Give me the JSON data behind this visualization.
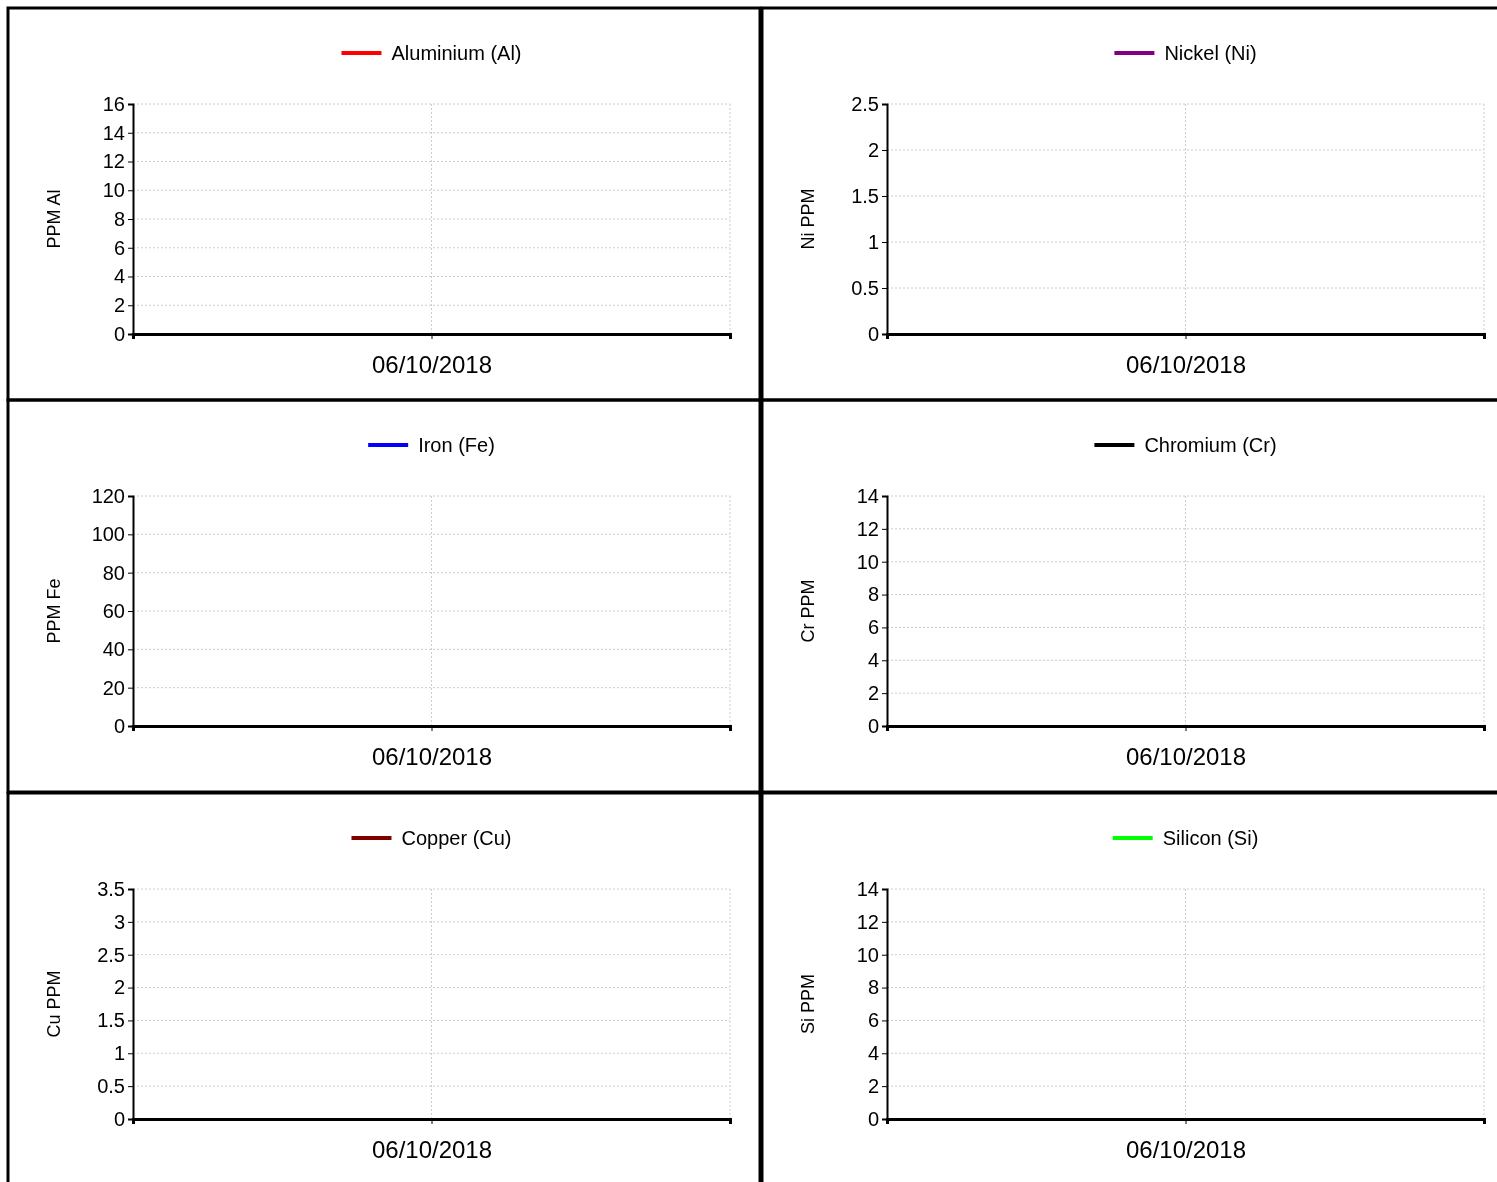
{
  "chart_data": [
    {
      "type": "line",
      "categories": [
        "06/10/2018"
      ],
      "series": [
        {
          "name": "Aluminium (Al)",
          "color": "#ff0000",
          "values": [
            null
          ]
        }
      ],
      "ylabel": "PPM Al",
      "ylim": [
        0,
        16
      ],
      "yticks": [
        0,
        2,
        4,
        6,
        8,
        10,
        12,
        14,
        16
      ],
      "grid": true,
      "legend": "top"
    },
    {
      "type": "line",
      "categories": [
        "06/10/2018"
      ],
      "series": [
        {
          "name": "Nickel (Ni)",
          "color": "#800080",
          "values": [
            null
          ]
        }
      ],
      "ylabel": "Ni PPM",
      "ylim": [
        0,
        2.5
      ],
      "yticks": [
        0,
        0.5,
        1,
        1.5,
        2,
        2.5
      ],
      "grid": true,
      "legend": "top"
    },
    {
      "type": "line",
      "categories": [
        "06/10/2018"
      ],
      "series": [
        {
          "name": "Iron (Fe)",
          "color": "#0000ff",
          "values": [
            null
          ]
        }
      ],
      "ylabel": "PPM Fe",
      "ylim": [
        0,
        120
      ],
      "yticks": [
        0,
        20,
        40,
        60,
        80,
        100,
        120
      ],
      "grid": true,
      "legend": "top"
    },
    {
      "type": "line",
      "categories": [
        "06/10/2018"
      ],
      "series": [
        {
          "name": "Chromium (Cr)",
          "color": "#000000",
          "values": [
            null
          ]
        }
      ],
      "ylabel": "Cr PPM",
      "ylim": [
        0,
        14
      ],
      "yticks": [
        0,
        2,
        4,
        6,
        8,
        10,
        12,
        14
      ],
      "grid": true,
      "legend": "top"
    },
    {
      "type": "line",
      "categories": [
        "06/10/2018"
      ],
      "series": [
        {
          "name": "Copper (Cu)",
          "color": "#800000",
          "values": [
            null
          ]
        }
      ],
      "ylabel": "Cu PPM",
      "ylim": [
        0,
        3.5
      ],
      "yticks": [
        0,
        0.5,
        1,
        1.5,
        2,
        2.5,
        3,
        3.5
      ],
      "grid": true,
      "legend": "top"
    },
    {
      "type": "line",
      "categories": [
        "06/10/2018"
      ],
      "series": [
        {
          "name": "Silicon (Si)",
          "color": "#00ff00",
          "values": [
            null
          ]
        }
      ],
      "ylabel": "Si PPM",
      "ylim": [
        0,
        14
      ],
      "yticks": [
        0,
        2,
        4,
        6,
        8,
        10,
        12,
        14
      ],
      "grid": true,
      "legend": "top"
    }
  ]
}
